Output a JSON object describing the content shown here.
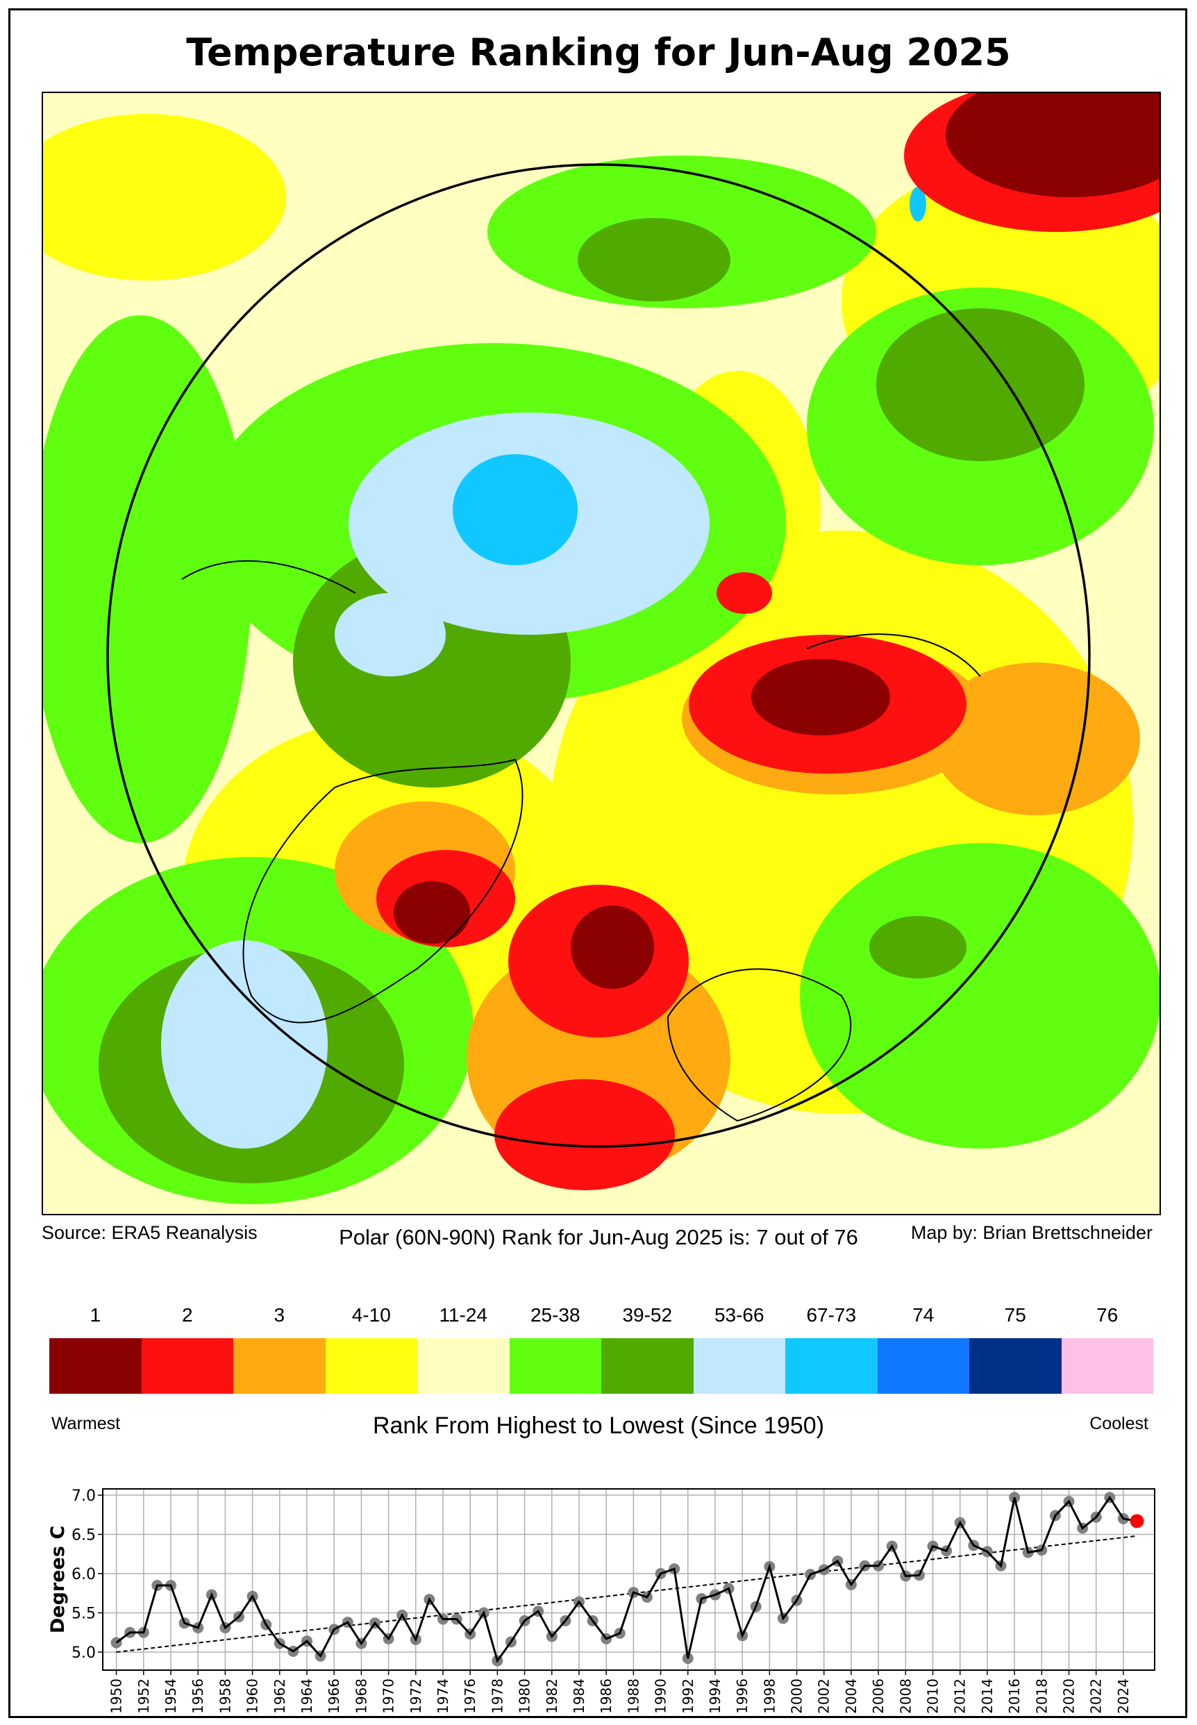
{
  "title": "Temperature Ranking for Jun-Aug 2025",
  "footer": {
    "source": "Source: ERA5 Reanalysis",
    "rank_statement": "Polar (60N-90N) Rank for Jun-Aug 2025 is: 7 out of 76",
    "credit": "Map by: Brian Brettschneider"
  },
  "colorbar": {
    "title": "Rank From Highest to Lowest (Since 1950)",
    "left_label": "Warmest",
    "right_label": "Coolest",
    "bins": [
      {
        "label": "1",
        "color": "#8B0000"
      },
      {
        "label": "2",
        "color": "#FF1010"
      },
      {
        "label": "3",
        "color": "#FFAA10"
      },
      {
        "label": "4-10",
        "color": "#FFFF10"
      },
      {
        "label": "11-24",
        "color": "#FFFFC0"
      },
      {
        "label": "25-38",
        "color": "#60FF10"
      },
      {
        "label": "39-52",
        "color": "#50AA00"
      },
      {
        "label": "53-66",
        "color": "#C0E8FF"
      },
      {
        "label": "67-73",
        "color": "#10C8FF"
      },
      {
        "label": "74",
        "color": "#1078FF"
      },
      {
        "label": "75",
        "color": "#003088"
      },
      {
        "label": "76",
        "color": "#FFC0E8"
      }
    ]
  },
  "chart_data": {
    "type": "line",
    "title": "",
    "xlabel": "",
    "ylabel": "Degrees C",
    "xlim": [
      1949,
      2026.3
    ],
    "ylim": [
      4.77,
      7.08
    ],
    "grid": true,
    "yticks": [
      "5.0",
      "5.5",
      "6.0",
      "6.5",
      "7.0"
    ],
    "xticks": [
      "1950",
      "1952",
      "1954",
      "1956",
      "1958",
      "1960",
      "1962",
      "1964",
      "1966",
      "1968",
      "1970",
      "1972",
      "1974",
      "1976",
      "1978",
      "1980",
      "1982",
      "1984",
      "1986",
      "1988",
      "1990",
      "1992",
      "1994",
      "1996",
      "1998",
      "2000",
      "2002",
      "2004",
      "2006",
      "2008",
      "2010",
      "2012",
      "2014",
      "2016",
      "2018",
      "2020",
      "2022",
      "2024"
    ],
    "series": [
      {
        "x": [
          1950,
          1951,
          1952,
          1953,
          1954,
          1955,
          1956,
          1957,
          1958,
          1959,
          1960,
          1961,
          1962,
          1963,
          1964,
          1965,
          1966,
          1967,
          1968,
          1969,
          1970,
          1971,
          1972,
          1973,
          1974,
          1975,
          1976,
          1977,
          1978,
          1979,
          1980,
          1981,
          1982,
          1983,
          1984,
          1985,
          1986,
          1987,
          1988,
          1989,
          1990,
          1991,
          1992,
          1993,
          1994,
          1995,
          1996,
          1997,
          1998,
          1999,
          2000,
          2001,
          2002,
          2003,
          2004,
          2005,
          2006,
          2007,
          2008,
          2009,
          2010,
          2011,
          2012,
          2013,
          2014,
          2015,
          2016,
          2017,
          2018,
          2019,
          2020,
          2021,
          2022,
          2023,
          2024,
          2025
        ],
        "y": [
          5.12,
          5.25,
          5.25,
          5.85,
          5.85,
          5.37,
          5.31,
          5.73,
          5.31,
          5.45,
          5.71,
          5.35,
          5.11,
          5.01,
          5.14,
          4.95,
          5.29,
          5.38,
          5.11,
          5.37,
          5.17,
          5.47,
          5.16,
          5.67,
          5.42,
          5.42,
          5.23,
          5.5,
          4.89,
          5.13,
          5.4,
          5.52,
          5.2,
          5.4,
          5.64,
          5.4,
          5.17,
          5.24,
          5.76,
          5.7,
          6.0,
          6.06,
          4.92,
          5.68,
          5.73,
          5.81,
          5.21,
          5.58,
          6.09,
          5.43,
          5.66,
          5.99,
          6.05,
          6.16,
          5.86,
          6.1,
          6.1,
          6.35,
          5.97,
          5.98,
          6.35,
          6.29,
          6.65,
          6.36,
          6.28,
          6.1,
          6.97,
          6.27,
          6.3,
          6.74,
          6.92,
          6.58,
          6.72,
          6.97,
          6.7,
          6.67
        ],
        "color": "#000000",
        "marker_color": "#808080",
        "highlight_last_color": "#FF0000"
      },
      {
        "kind": "trend",
        "x": [
          1950,
          2025
        ],
        "y": [
          5.0,
          6.48
        ],
        "style": "dashed"
      }
    ]
  }
}
